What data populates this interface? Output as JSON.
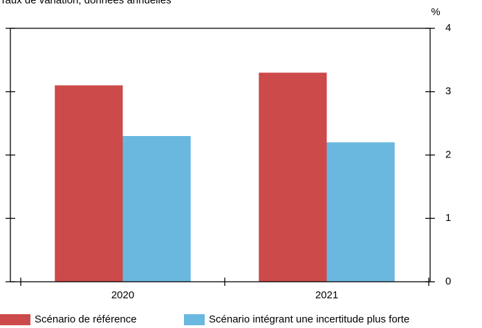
{
  "chart_data": {
    "type": "bar",
    "subtitle": "Taux de variation, données annuelles",
    "y_unit": "%",
    "categories": [
      "2020",
      "2021"
    ],
    "series": [
      {
        "name": "Scénario de référence",
        "color": "#cd4a4a",
        "values": [
          3.1,
          3.3
        ]
      },
      {
        "name": "Scénario intégrant une incertitude plus forte",
        "color": "#6ab8df",
        "values": [
          2.3,
          2.2
        ]
      }
    ],
    "ylim": [
      0,
      4
    ],
    "yticks": [
      0,
      1,
      2,
      3,
      4
    ],
    "grid": false
  }
}
